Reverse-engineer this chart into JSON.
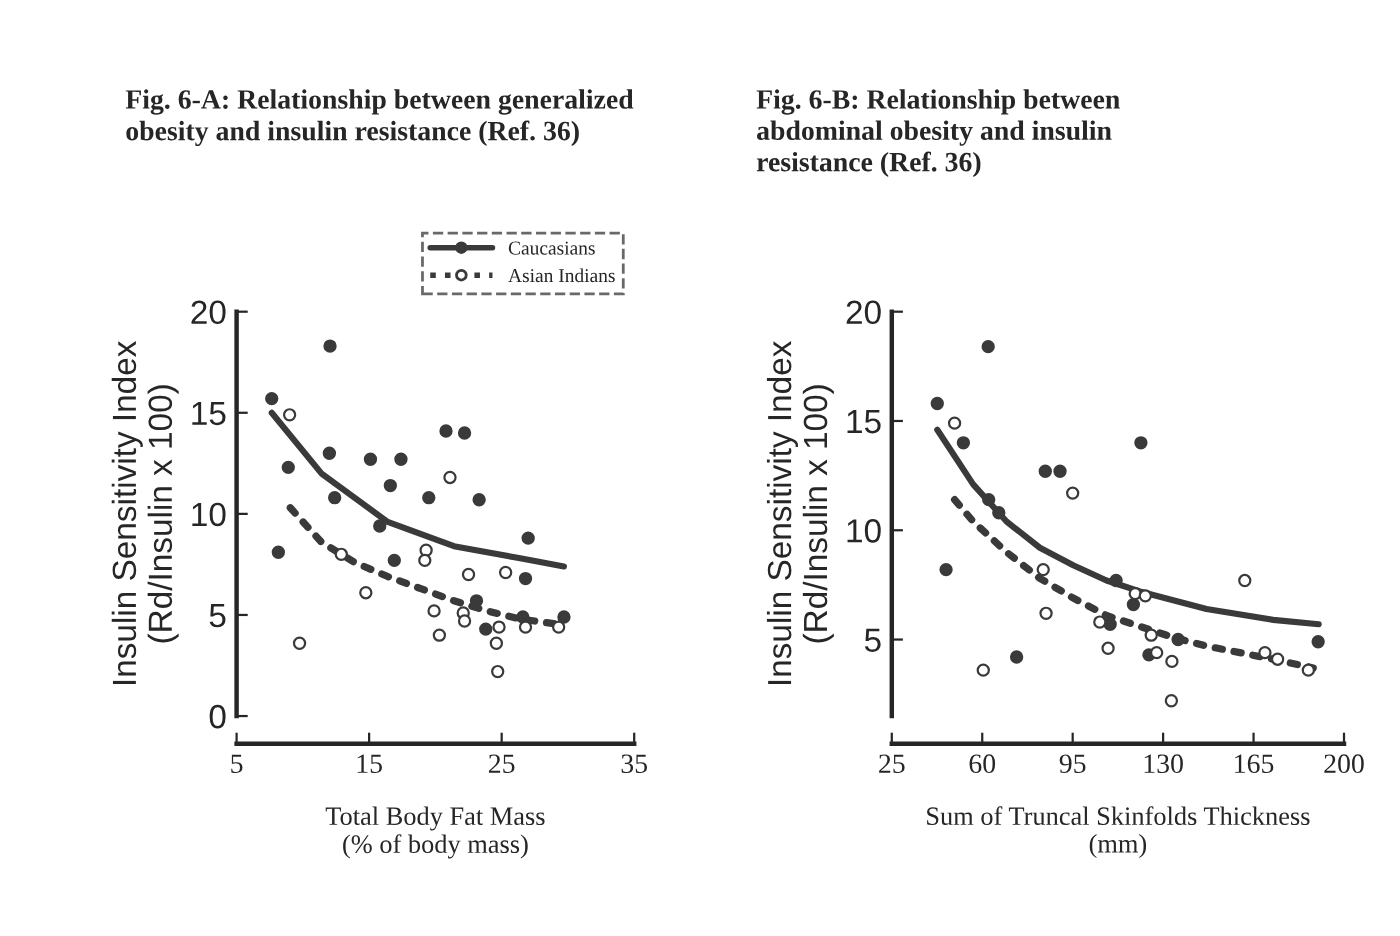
{
  "chart_data": [
    {
      "type": "scatter",
      "title": "Fig. 6-A: Relationship between generalized\nobesity and insulin resistance (Ref. 36)",
      "xlabel": "Total Body Fat Mass\n(% of body mass)",
      "ylabel": "Insulin Sensitivity Index\n(Rd/Insulin x 100)",
      "xlim": [
        5,
        35
      ],
      "xticks": [
        5,
        15,
        25,
        35
      ],
      "ylim": [
        0,
        20
      ],
      "yticks": [
        0,
        5,
        10,
        15,
        20
      ],
      "grid": false,
      "legend": "top right",
      "series": [
        {
          "name": "Caucasians",
          "color": "#3a3a3a",
          "marker": "circle",
          "line_style": "solid",
          "x": [
            7.65,
            12.05,
            8.15,
            8.9,
            12.0,
            12.4,
            15.1,
            15.8,
            16.6,
            17.4,
            16.9,
            19.5,
            20.8,
            22.2,
            23.3,
            23.1,
            23.8,
            27.0,
            26.8,
            26.6,
            29.7
          ],
          "values": [
            15.7,
            18.3,
            8.1,
            12.3,
            13.0,
            10.8,
            12.7,
            9.4,
            11.4,
            12.7,
            7.7,
            10.8,
            14.1,
            14.0,
            10.7,
            5.7,
            4.3,
            8.8,
            6.8,
            4.9,
            4.9
          ]
        },
        {
          "name": "Asian Indians",
          "color": "#ffffff",
          "marker": "circle",
          "line_style": "dotted",
          "x": [
            9.0,
            9.75,
            12.9,
            14.75,
            19.3,
            19.2,
            21.1,
            19.9,
            20.3,
            22.1,
            22.2,
            22.5,
            24.6,
            24.8,
            24.7,
            25.3,
            26.8,
            29.3
          ],
          "values": [
            14.9,
            3.6,
            8.0,
            6.1,
            8.2,
            7.7,
            11.8,
            5.2,
            4.0,
            5.1,
            4.7,
            7.0,
            3.6,
            4.4,
            2.2,
            7.1,
            4.4,
            4.4
          ]
        },
        {
          "color": "#3a3a3a",
          "type": "line",
          "marker": "none",
          "line_style": "solid",
          "x": [
            7.65,
            11.4,
            16.4,
            21.4,
            26.4,
            29.7
          ],
          "values": [
            15.0,
            12.0,
            9.6,
            8.4,
            7.8,
            7.4
          ]
        },
        {
          "color": "#3a3a3a",
          "type": "line",
          "marker": "none",
          "line_style": "dotted",
          "x": [
            9.05,
            11.4,
            13.9,
            16.4,
            18.9,
            21.4,
            23.9,
            26.4,
            29.7
          ],
          "values": [
            10.3,
            8.6,
            7.6,
            6.9,
            6.3,
            5.7,
            5.2,
            4.8,
            4.5
          ]
        }
      ]
    },
    {
      "type": "scatter",
      "title": "Fig. 6-B: Relationship between\nabdominal obesity and insulin\nresistance (Ref. 36)",
      "xlabel": "Sum of Truncal Skinfolds Thickness\n(mm)",
      "ylabel": "Insulin Sensitivity Index\n(Rd/Insulin x 100)",
      "xlim": [
        25,
        200
      ],
      "xticks": [
        25,
        60,
        95,
        130,
        165,
        200
      ],
      "ylim": [
        1.5,
        20
      ],
      "yticks": [
        5,
        10,
        15,
        20
      ],
      "grid": false,
      "legend": false,
      "series": [
        {
          "color": "#3a3a3a",
          "marker": "circle",
          "x": [
            42.6,
            46.0,
            52.7,
            62.3,
            62.5,
            66.4,
            73.3,
            84.4,
            90.1,
            109.5,
            111.8,
            118.5,
            121.4,
            124.5,
            135.8,
            190.0
          ],
          "values": [
            15.8,
            8.2,
            14.0,
            18.4,
            11.4,
            10.8,
            4.2,
            12.7,
            12.7,
            5.7,
            7.7,
            6.6,
            14.0,
            4.3,
            5.0,
            4.9
          ]
        },
        {
          "color": "#ffffff",
          "marker": "circle",
          "x": [
            49.3,
            60.4,
            83.6,
            84.7,
            95.0,
            105.5,
            108.7,
            119.2,
            123.1,
            125.4,
            127.5,
            133.4,
            133.2,
            161.6,
            169.4,
            174.3,
            186.2
          ],
          "values": [
            14.9,
            3.6,
            8.2,
            6.2,
            11.7,
            5.8,
            4.6,
            7.1,
            7.0,
            5.2,
            4.4,
            4.0,
            2.2,
            7.7,
            4.4,
            4.1,
            3.6
          ]
        },
        {
          "color": "#3a3a3a",
          "type": "line",
          "marker": "none",
          "line_style": "solid",
          "x": [
            42.6,
            56.5,
            69.4,
            82.3,
            95.2,
            108.1,
            121.0,
            133.9,
            146.8,
            172.6,
            190.2
          ],
          "values": [
            14.6,
            12.1,
            10.4,
            9.2,
            8.4,
            7.7,
            7.2,
            6.8,
            6.4,
            5.9,
            5.7
          ]
        },
        {
          "color": "#3a3a3a",
          "type": "line",
          "marker": "none",
          "line_style": "dotted",
          "x": [
            49.3,
            56.5,
            69.4,
            82.3,
            95.2,
            108.1,
            121.0,
            133.9,
            146.8,
            159.7,
            172.6,
            188.1
          ],
          "values": [
            11.4,
            10.4,
            9.0,
            7.8,
            6.9,
            6.1,
            5.6,
            5.1,
            4.7,
            4.4,
            4.1,
            3.7
          ]
        }
      ]
    }
  ]
}
